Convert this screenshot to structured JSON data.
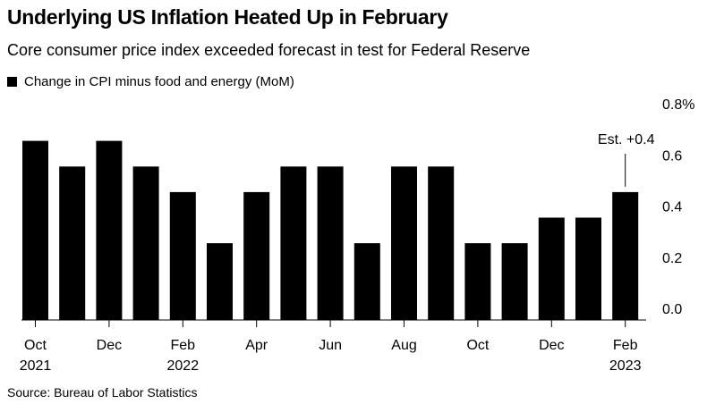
{
  "title": "Underlying US Inflation Heated Up in February",
  "subtitle": "Core consumer price index exceeded forecast in test for Federal Reserve",
  "source": "Source: Bureau of Labor Statistics",
  "colors": {
    "bar": "#000000",
    "text": "#000000",
    "background": "#ffffff"
  },
  "chart_data": {
    "type": "bar",
    "categories": [
      "Oct 2021",
      "Nov 2021",
      "Dec 2021",
      "Jan 2022",
      "Feb 2022",
      "Mar 2022",
      "Apr 2022",
      "May 2022",
      "Jun 2022",
      "Jul 2022",
      "Aug 2022",
      "Sep 2022",
      "Oct 2022",
      "Nov 2022",
      "Dec 2022",
      "Jan 2023",
      "Feb 2023"
    ],
    "x_tick_labels": [
      {
        "index": 0,
        "line1": "Oct",
        "line2": "2021"
      },
      {
        "index": 2,
        "line1": "Dec",
        "line2": ""
      },
      {
        "index": 4,
        "line1": "Feb",
        "line2": "2022"
      },
      {
        "index": 6,
        "line1": "Apr",
        "line2": ""
      },
      {
        "index": 8,
        "line1": "Jun",
        "line2": ""
      },
      {
        "index": 10,
        "line1": "Aug",
        "line2": ""
      },
      {
        "index": 12,
        "line1": "Oct",
        "line2": ""
      },
      {
        "index": 14,
        "line1": "Dec",
        "line2": ""
      },
      {
        "index": 16,
        "line1": "Feb",
        "line2": "2023"
      }
    ],
    "series": [
      {
        "name": "Change in CPI minus food and energy (MoM)",
        "values": [
          0.7,
          0.6,
          0.7,
          0.6,
          0.5,
          0.3,
          0.5,
          0.6,
          0.6,
          0.3,
          0.6,
          0.6,
          0.3,
          0.3,
          0.4,
          0.4,
          0.5
        ]
      }
    ],
    "y_tick_labels": [
      "0.0",
      "0.2",
      "0.4",
      "0.6",
      "0.8%"
    ],
    "y_ticks": [
      0,
      0.2,
      0.4,
      0.6,
      0.8
    ],
    "ylim": [
      0,
      0.8
    ],
    "y_axis_position": "right",
    "grid": false,
    "legend": "top-left",
    "annotation": {
      "text": "Est. +0.4",
      "index": 16,
      "value": 0.4
    },
    "xlabel": "",
    "ylabel": ""
  }
}
